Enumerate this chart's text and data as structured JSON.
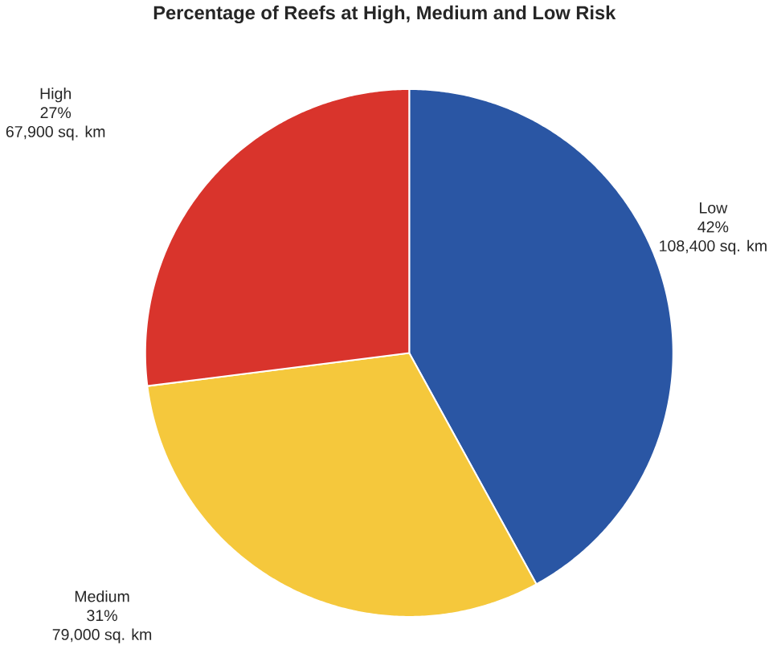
{
  "chart_data": {
    "type": "pie",
    "title": "Percentage of Reefs at High, Medium and Low Risk",
    "categories": [
      "Low",
      "Medium",
      "High"
    ],
    "values": [
      42,
      31,
      27
    ],
    "colors": [
      "#2a56a4",
      "#f5c83c",
      "#d9342c"
    ],
    "value_labels": [
      "42%",
      "31%",
      "27%"
    ],
    "annotations": [
      "108,400 sq. km",
      "79,000 sq. km",
      "67,900 sq. km"
    ]
  }
}
